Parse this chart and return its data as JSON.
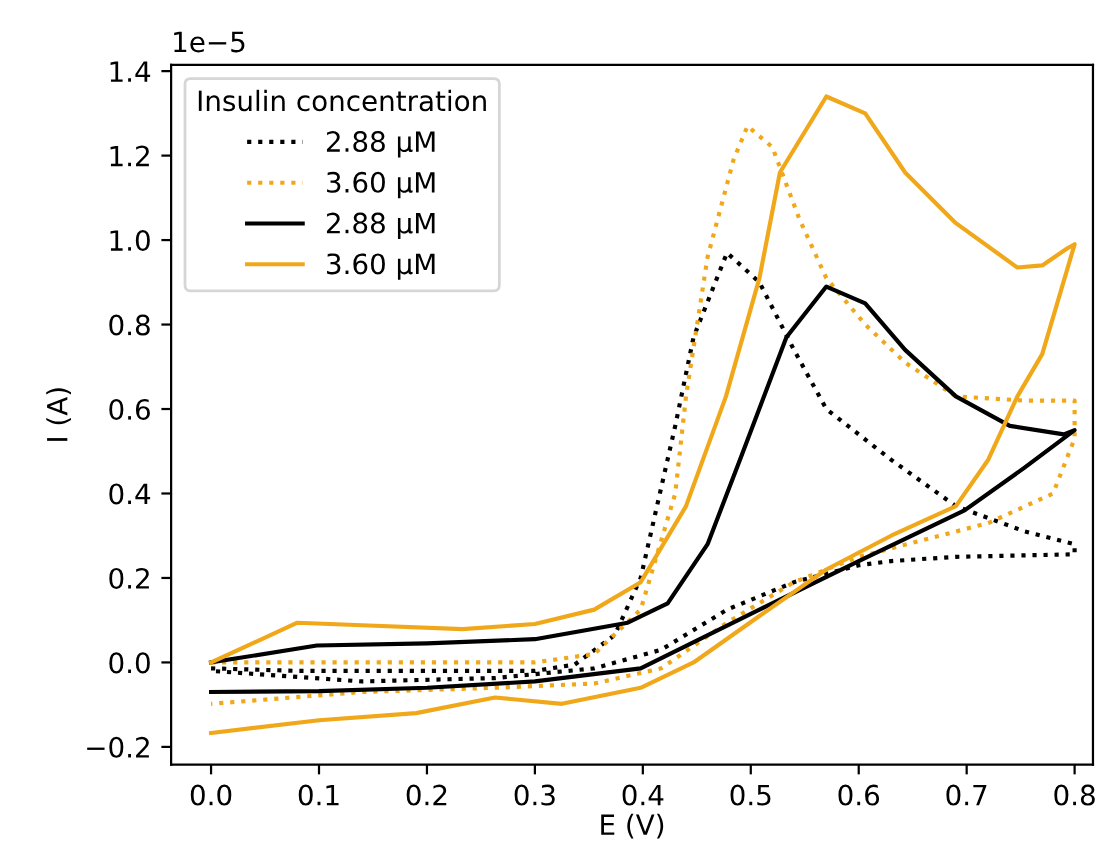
{
  "chart_data": {
    "type": "line",
    "xlabel": "E (V)",
    "ylabel": "I (A)",
    "annotations": [
      "1e−5"
    ],
    "legend_title": "Insulin concentration",
    "legend": "top left",
    "grid": false,
    "xlim": [
      -0.037,
      0.817
    ],
    "ylim": [
      -0.242,
      1.415
    ],
    "xticks": [
      {
        "value": 0.0,
        "label": "0.0"
      },
      {
        "value": 0.1,
        "label": "0.1"
      },
      {
        "value": 0.2,
        "label": "0.2"
      },
      {
        "value": 0.3,
        "label": "0.3"
      },
      {
        "value": 0.4,
        "label": "0.4"
      },
      {
        "value": 0.5,
        "label": "0.5"
      },
      {
        "value": 0.6,
        "label": "0.6"
      },
      {
        "value": 0.7,
        "label": "0.7"
      },
      {
        "value": 0.8,
        "label": "0.8"
      }
    ],
    "yticks": [
      {
        "value": -0.2,
        "label": "−0.2"
      },
      {
        "value": 0.0,
        "label": "0.0"
      },
      {
        "value": 0.2,
        "label": "0.2"
      },
      {
        "value": 0.4,
        "label": "0.4"
      },
      {
        "value": 0.6,
        "label": "0.6"
      },
      {
        "value": 0.8,
        "label": "0.8"
      },
      {
        "value": 1.0,
        "label": "1.0"
      },
      {
        "value": 1.2,
        "label": "1.2"
      },
      {
        "value": 1.4,
        "label": "1.4"
      }
    ],
    "series": [
      {
        "name": "2.88 µM",
        "color": "#000000",
        "line_style": "dotted",
        "x": [
          0,
          0.08,
          0.2,
          0.3,
          0.337,
          0.374,
          0.398,
          0.43,
          0.447,
          0.478,
          0.508,
          0.54,
          0.57,
          0.63,
          0.69,
          0.754,
          0.8,
          0.8,
          0.69,
          0.63,
          0.6,
          0.54,
          0.478,
          0.417,
          0.355,
          0.263,
          0.14,
          0
        ],
        "values": [
          -0.014,
          -0.02,
          -0.02,
          -0.02,
          -0.005,
          0.065,
          0.2,
          0.56,
          0.77,
          0.97,
          0.9,
          0.74,
          0.6,
          0.48,
          0.37,
          0.31,
          0.28,
          0.256,
          0.25,
          0.24,
          0.23,
          0.19,
          0.125,
          0.03,
          -0.014,
          -0.037,
          -0.045,
          -0.02
        ]
      },
      {
        "name": "3.60 µM",
        "color": "#f0a81a",
        "line_style": "dotted",
        "x": [
          0,
          0.14,
          0.3,
          0.355,
          0.398,
          0.43,
          0.44,
          0.46,
          0.484,
          0.497,
          0.52,
          0.545,
          0.57,
          0.606,
          0.643,
          0.69,
          0.753,
          0.8,
          0.8,
          0.78,
          0.72,
          0.66,
          0.6,
          0.54,
          0.478,
          0.417,
          0.355,
          0.263,
          0.14,
          0
        ],
        "values": [
          0.0,
          0.0,
          0.0,
          0.02,
          0.125,
          0.4,
          0.63,
          0.96,
          1.19,
          1.27,
          1.22,
          1.05,
          0.91,
          0.8,
          0.71,
          0.63,
          0.62,
          0.62,
          0.53,
          0.4,
          0.33,
          0.29,
          0.25,
          0.19,
          0.094,
          -0.014,
          -0.05,
          -0.06,
          -0.07,
          -0.098
        ]
      },
      {
        "name": "2.88 µM",
        "color": "#000000",
        "line_style": "solid",
        "x": [
          0,
          0.098,
          0.2,
          0.3,
          0.386,
          0.423,
          0.46,
          0.49,
          0.533,
          0.57,
          0.606,
          0.643,
          0.69,
          0.74,
          0.79,
          0.8,
          0.753,
          0.698,
          0.6,
          0.508,
          0.398,
          0.3,
          0.2,
          0.1,
          0
        ],
        "values": [
          0.0,
          0.04,
          0.045,
          0.055,
          0.094,
          0.14,
          0.28,
          0.48,
          0.77,
          0.89,
          0.85,
          0.74,
          0.63,
          0.56,
          0.54,
          0.55,
          0.46,
          0.36,
          0.24,
          0.125,
          -0.014,
          -0.045,
          -0.06,
          -0.068,
          -0.07
        ]
      },
      {
        "name": "3.60 µM",
        "color": "#f0a81a",
        "line_style": "solid",
        "x": [
          0,
          0.08,
          0.14,
          0.233,
          0.3,
          0.355,
          0.398,
          0.44,
          0.477,
          0.508,
          0.527,
          0.57,
          0.606,
          0.643,
          0.69,
          0.747,
          0.77,
          0.793,
          0.8,
          0.77,
          0.747,
          0.72,
          0.69,
          0.63,
          0.57,
          0.508,
          0.447,
          0.398,
          0.325,
          0.263,
          0.19,
          0.1,
          0
        ],
        "values": [
          0.0,
          0.094,
          0.088,
          0.079,
          0.091,
          0.125,
          0.19,
          0.37,
          0.63,
          0.91,
          1.16,
          1.34,
          1.3,
          1.16,
          1.04,
          0.935,
          0.94,
          0.98,
          0.99,
          0.73,
          0.63,
          0.48,
          0.37,
          0.3,
          0.22,
          0.11,
          0.0,
          -0.06,
          -0.098,
          -0.083,
          -0.12,
          -0.137,
          -0.167
        ]
      }
    ]
  }
}
